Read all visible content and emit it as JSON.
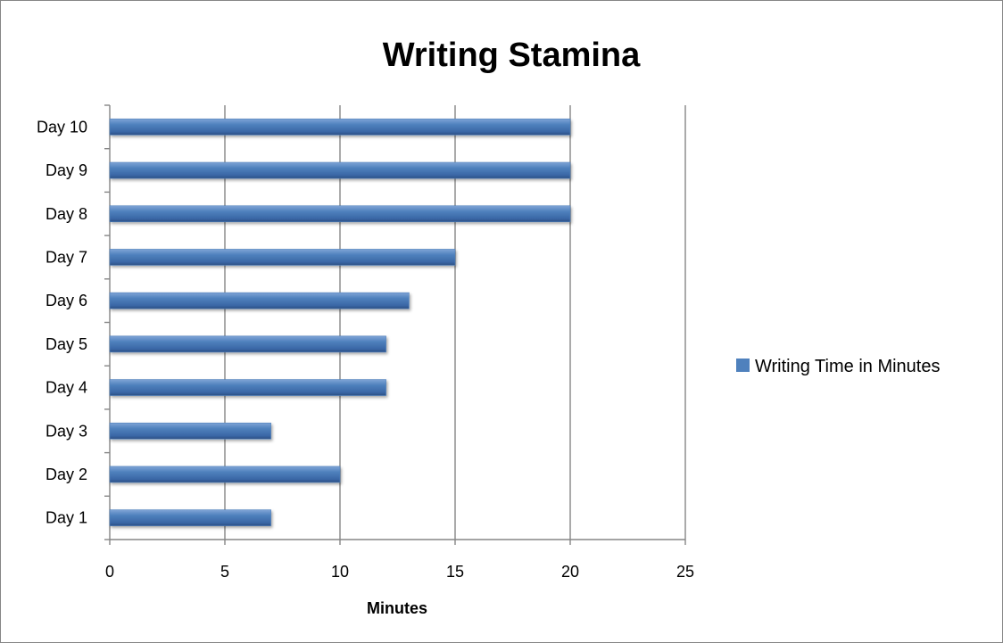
{
  "chart_data": {
    "type": "bar",
    "orientation": "horizontal",
    "title": "Writing Stamina",
    "xlabel": "Minutes",
    "ylabel": "",
    "categories": [
      "Day 1",
      "Day 2",
      "Day 3",
      "Day 4",
      "Day 5",
      "Day 6",
      "Day 7",
      "Day 8",
      "Day 9",
      "Day 10"
    ],
    "series": [
      {
        "name": "Writing Time in Minutes",
        "values": [
          7,
          10,
          7,
          12,
          12,
          13,
          15,
          20,
          20,
          20
        ],
        "color": "#4f81bd"
      }
    ],
    "xlim": [
      0,
      25
    ],
    "xticks": [
      0,
      5,
      10,
      15,
      20,
      25
    ],
    "grid": "vertical major gridlines",
    "legend_position": "right"
  }
}
